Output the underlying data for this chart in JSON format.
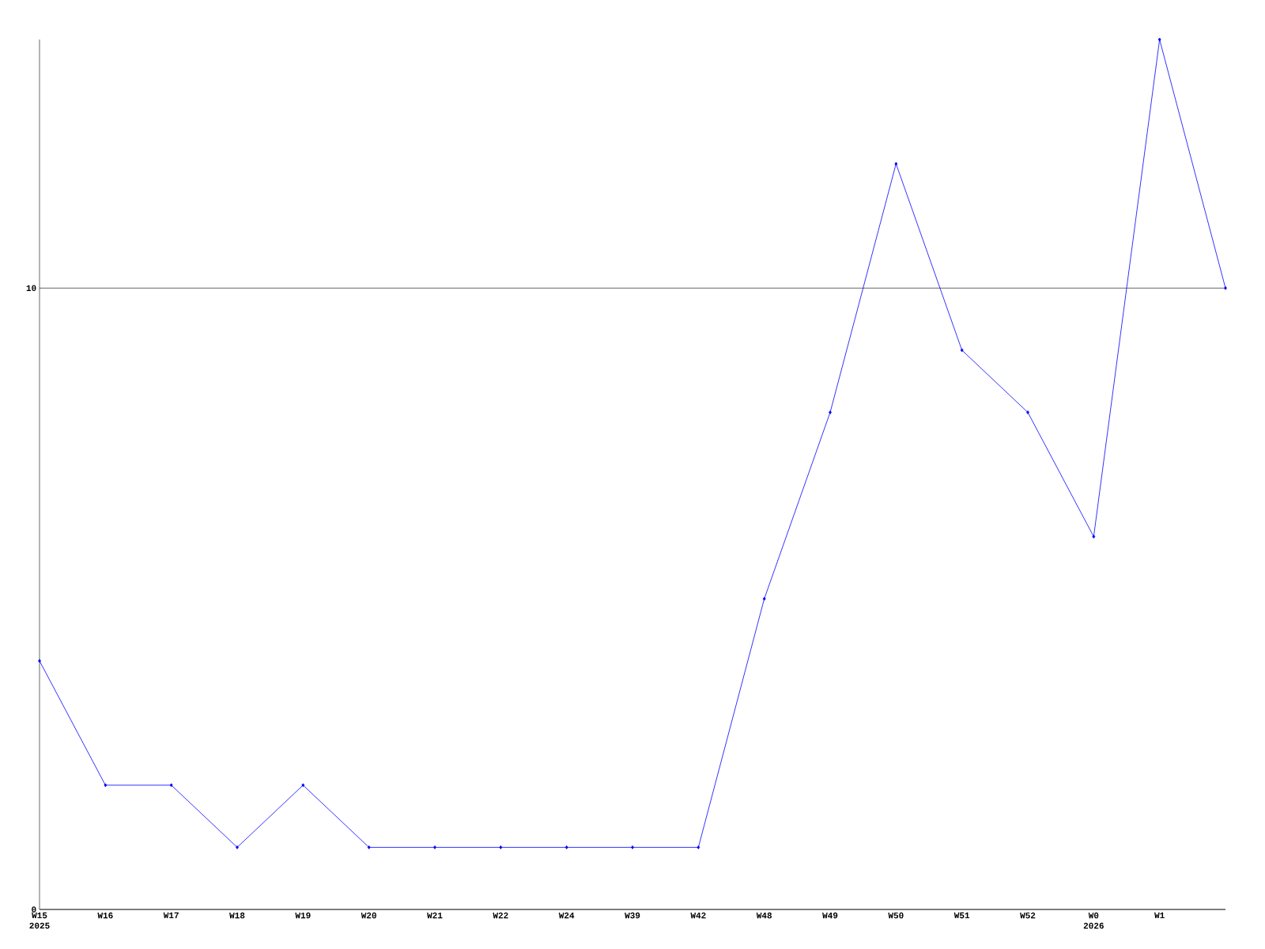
{
  "chart_data": {
    "type": "line",
    "categories": [
      "W15 2025",
      "W16",
      "W17",
      "W18",
      "W19",
      "W20",
      "W21",
      "W22",
      "W24",
      "W39",
      "W42",
      "W48",
      "W49",
      "W50",
      "W51",
      "W52",
      "W0 2026",
      "W1",
      null
    ],
    "series": [
      {
        "color": "#0000ff",
        "values": [
          4,
          2,
          2,
          1,
          2,
          1,
          1,
          1,
          1,
          1,
          1,
          5,
          8,
          12,
          9,
          8,
          6,
          14,
          10
        ]
      }
    ],
    "ylim": [
      0,
      14
    ],
    "yticks": [
      0,
      10
    ],
    "grid": "y",
    "marker": "diamond",
    "line_style": "solid"
  }
}
